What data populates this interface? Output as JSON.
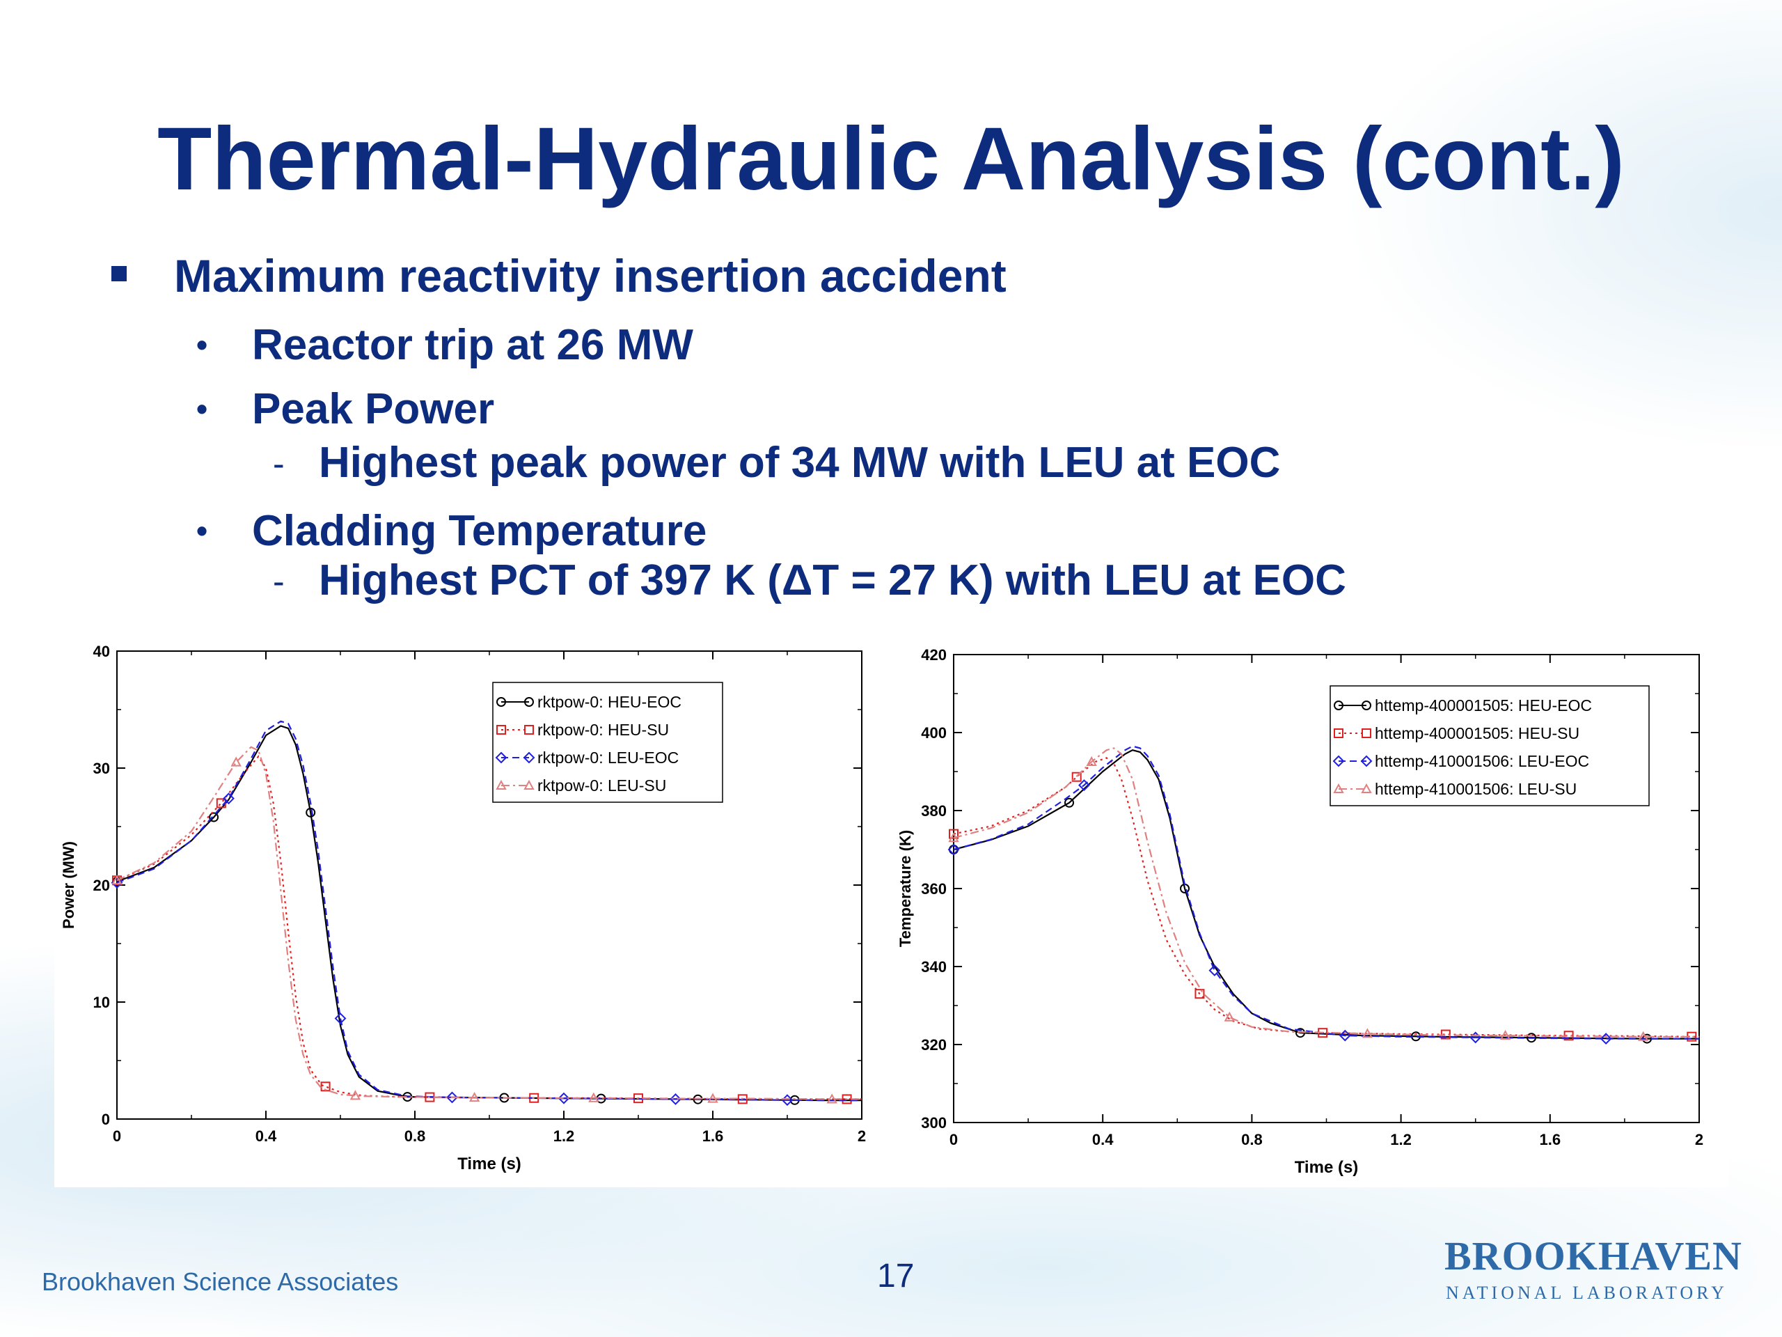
{
  "slide": {
    "title": "Thermal-Hydraulic Analysis (cont.)",
    "bullets": {
      "b1": "Maximum reactivity insertion accident",
      "b1_1": "Reactor trip at 26 MW",
      "b1_2": "Peak Power",
      "b1_2_1": "Highest peak power of 34 MW with LEU at EOC",
      "b1_3": "Cladding Temperature",
      "b1_3_1": "Highest PCT of 397 K (ΔT = 27 K) with LEU at EOC"
    },
    "footer": {
      "organization": "Brookhaven Science Associates",
      "page_number": "17",
      "logo_main": "BROOKHAVEN",
      "logo_sub": "NATIONAL LABORATORY"
    }
  },
  "colors": {
    "title": "#0d2c7e",
    "HEU-EOC": "#000000",
    "HEU-SU": "#e02020",
    "LEU-EOC": "#1f1fe0",
    "LEU-SU": "#e08080"
  },
  "chart_data": [
    {
      "type": "line",
      "xlabel": "Time (s)",
      "ylabel": "Power (MW)",
      "xlim": [
        0,
        2
      ],
      "ylim": [
        0,
        40
      ],
      "xticks": [
        0,
        0.4,
        0.8,
        1.2,
        1.6,
        2
      ],
      "yticks": [
        0,
        10,
        20,
        30,
        40
      ],
      "legend_position": "top-right",
      "series": [
        {
          "name": "rktpow-0: HEU-EOC",
          "style": "solid",
          "marker": "circle",
          "color": "#000000",
          "x": [
            0,
            0.1,
            0.2,
            0.26,
            0.3,
            0.36,
            0.4,
            0.44,
            0.46,
            0.48,
            0.5,
            0.52,
            0.54,
            0.56,
            0.58,
            0.6,
            0.62,
            0.65,
            0.7,
            0.78,
            0.9,
            1.1,
            1.3,
            1.5,
            1.7,
            1.9,
            2.0
          ],
          "y": [
            20.3,
            21.5,
            23.8,
            25.8,
            27.3,
            30.5,
            32.8,
            33.6,
            33.4,
            32.0,
            29.5,
            26.2,
            22.0,
            17.0,
            12.0,
            8.0,
            5.5,
            3.6,
            2.4,
            1.9,
            1.85,
            1.8,
            1.75,
            1.7,
            1.65,
            1.6,
            1.6
          ],
          "markers_x": [
            0,
            0.26,
            0.52,
            0.78,
            1.04,
            1.3,
            1.56,
            1.82
          ]
        },
        {
          "name": "rktpow-0: HEU-SU",
          "style": "dotted",
          "marker": "square",
          "color": "#e02020",
          "x": [
            0,
            0.1,
            0.2,
            0.28,
            0.34,
            0.38,
            0.4,
            0.42,
            0.44,
            0.46,
            0.48,
            0.5,
            0.52,
            0.55,
            0.6,
            0.66,
            0.75,
            0.9,
            1.1,
            1.3,
            1.5,
            1.7,
            1.9,
            2.0
          ],
          "y": [
            20.4,
            21.8,
            24.3,
            27.0,
            29.5,
            31.0,
            30.0,
            27.0,
            22.0,
            16.0,
            10.5,
            6.5,
            4.2,
            2.9,
            2.3,
            2.0,
            1.9,
            1.85,
            1.8,
            1.8,
            1.75,
            1.7,
            1.7,
            1.7
          ],
          "markers_x": [
            0,
            0.28,
            0.56,
            0.84,
            1.12,
            1.4,
            1.68,
            1.96
          ]
        },
        {
          "name": "rktpow-0: LEU-EOC",
          "style": "dashed",
          "marker": "diamond",
          "color": "#1f1fe0",
          "x": [
            0,
            0.1,
            0.2,
            0.3,
            0.36,
            0.4,
            0.44,
            0.46,
            0.48,
            0.5,
            0.52,
            0.54,
            0.56,
            0.58,
            0.6,
            0.62,
            0.65,
            0.7,
            0.78,
            0.9,
            1.1,
            1.3,
            1.5,
            1.7,
            1.9,
            2.0
          ],
          "y": [
            20.2,
            21.4,
            23.8,
            27.4,
            30.8,
            33.2,
            34.0,
            33.8,
            32.5,
            30.2,
            27.0,
            23.0,
            18.0,
            13.0,
            8.6,
            5.8,
            3.8,
            2.5,
            1.95,
            1.85,
            1.8,
            1.75,
            1.7,
            1.65,
            1.6,
            1.6
          ],
          "markers_x": [
            0,
            0.3,
            0.6,
            0.9,
            1.2,
            1.5,
            1.8
          ]
        },
        {
          "name": "rktpow-0: LEU-SU",
          "style": "dashdot",
          "marker": "triangle",
          "color": "#e08080",
          "x": [
            0,
            0.1,
            0.2,
            0.26,
            0.32,
            0.36,
            0.38,
            0.4,
            0.42,
            0.44,
            0.46,
            0.48,
            0.5,
            0.52,
            0.55,
            0.6,
            0.66,
            0.75,
            0.9,
            1.1,
            1.3,
            1.5,
            1.7,
            1.9,
            2.0
          ],
          "y": [
            20.4,
            21.9,
            24.6,
            27.5,
            30.5,
            31.8,
            31.5,
            29.5,
            25.5,
            19.5,
            13.5,
            8.5,
            5.5,
            3.8,
            2.6,
            2.1,
            1.95,
            1.9,
            1.85,
            1.8,
            1.8,
            1.75,
            1.75,
            1.7,
            1.7
          ],
          "markers_x": [
            0,
            0.32,
            0.64,
            0.96,
            1.28,
            1.6,
            1.92
          ]
        }
      ]
    },
    {
      "type": "line",
      "xlabel": "Time (s)",
      "ylabel": "Temperature (K)",
      "xlim": [
        0,
        2
      ],
      "ylim": [
        300,
        420
      ],
      "xticks": [
        0,
        0.4,
        0.8,
        1.2,
        1.6,
        2
      ],
      "yticks": [
        300,
        320,
        340,
        360,
        380,
        400,
        420
      ],
      "legend_position": "top-right",
      "series": [
        {
          "name": "httemp-400001505: HEU-EOC",
          "style": "solid",
          "marker": "circle",
          "color": "#000000",
          "x": [
            0,
            0.1,
            0.2,
            0.31,
            0.4,
            0.46,
            0.48,
            0.5,
            0.52,
            0.55,
            0.58,
            0.62,
            0.66,
            0.7,
            0.75,
            0.8,
            0.85,
            0.93,
            1.1,
            1.3,
            1.5,
            1.7,
            1.86,
            2.0
          ],
          "y": [
            370,
            372.5,
            376,
            382,
            390,
            394.5,
            395.5,
            395,
            393,
            388,
            378,
            360,
            348,
            340,
            333,
            328,
            325.5,
            323,
            322.3,
            322,
            321.8,
            321.6,
            321.5,
            321.5
          ],
          "markers_x": [
            0,
            0.31,
            0.62,
            0.93,
            1.24,
            1.55,
            1.86
          ]
        },
        {
          "name": "httemp-400001505: HEU-SU",
          "style": "dotted",
          "marker": "square",
          "color": "#e02020",
          "x": [
            0,
            0.1,
            0.2,
            0.3,
            0.34,
            0.38,
            0.41,
            0.43,
            0.45,
            0.48,
            0.52,
            0.57,
            0.62,
            0.66,
            0.7,
            0.75,
            0.82,
            0.9,
            0.99,
            1.2,
            1.4,
            1.6,
            1.8,
            2.0
          ],
          "y": [
            374,
            376,
            380,
            386,
            389.5,
            392.5,
            393.5,
            392,
            388,
            378,
            362,
            347,
            338,
            333,
            329,
            326,
            324,
            323.3,
            323,
            322.7,
            322.5,
            322.3,
            322.2,
            322
          ],
          "markers_x": [
            0,
            0.33,
            0.66,
            0.99,
            1.32,
            1.65,
            1.98
          ]
        },
        {
          "name": "httemp-410001506: LEU-EOC",
          "style": "dashed",
          "marker": "diamond",
          "color": "#1f1fe0",
          "x": [
            0,
            0.1,
            0.2,
            0.3,
            0.35,
            0.4,
            0.46,
            0.48,
            0.5,
            0.52,
            0.55,
            0.58,
            0.62,
            0.66,
            0.7,
            0.75,
            0.8,
            0.9,
            1.05,
            1.2,
            1.4,
            1.6,
            1.75,
            2.0
          ],
          "y": [
            370,
            372.6,
            376.5,
            383,
            386.5,
            391,
            395.5,
            396.5,
            396,
            394,
            389,
            379,
            361,
            348.5,
            339,
            332.5,
            328,
            324,
            322.3,
            322,
            321.8,
            321.6,
            321.5,
            321.5
          ],
          "markers_x": [
            0,
            0.35,
            0.7,
            1.05,
            1.4,
            1.75
          ]
        },
        {
          "name": "httemp-410001506: LEU-SU",
          "style": "dashdot",
          "marker": "triangle",
          "color": "#e08080",
          "x": [
            0,
            0.1,
            0.2,
            0.3,
            0.37,
            0.41,
            0.43,
            0.45,
            0.48,
            0.52,
            0.57,
            0.62,
            0.67,
            0.74,
            0.8,
            0.9,
            1.1,
            1.3,
            1.48,
            1.7,
            1.85,
            2.0
          ],
          "y": [
            373,
            375.5,
            379.5,
            386,
            392.5,
            395.5,
            396,
            394.5,
            388,
            372,
            354,
            341,
            333,
            327,
            324.5,
            323.3,
            322.8,
            322.4,
            322.3,
            322.1,
            322,
            322
          ],
          "markers_x": [
            0,
            0.37,
            0.74,
            1.11,
            1.48,
            1.85
          ]
        }
      ]
    }
  ]
}
